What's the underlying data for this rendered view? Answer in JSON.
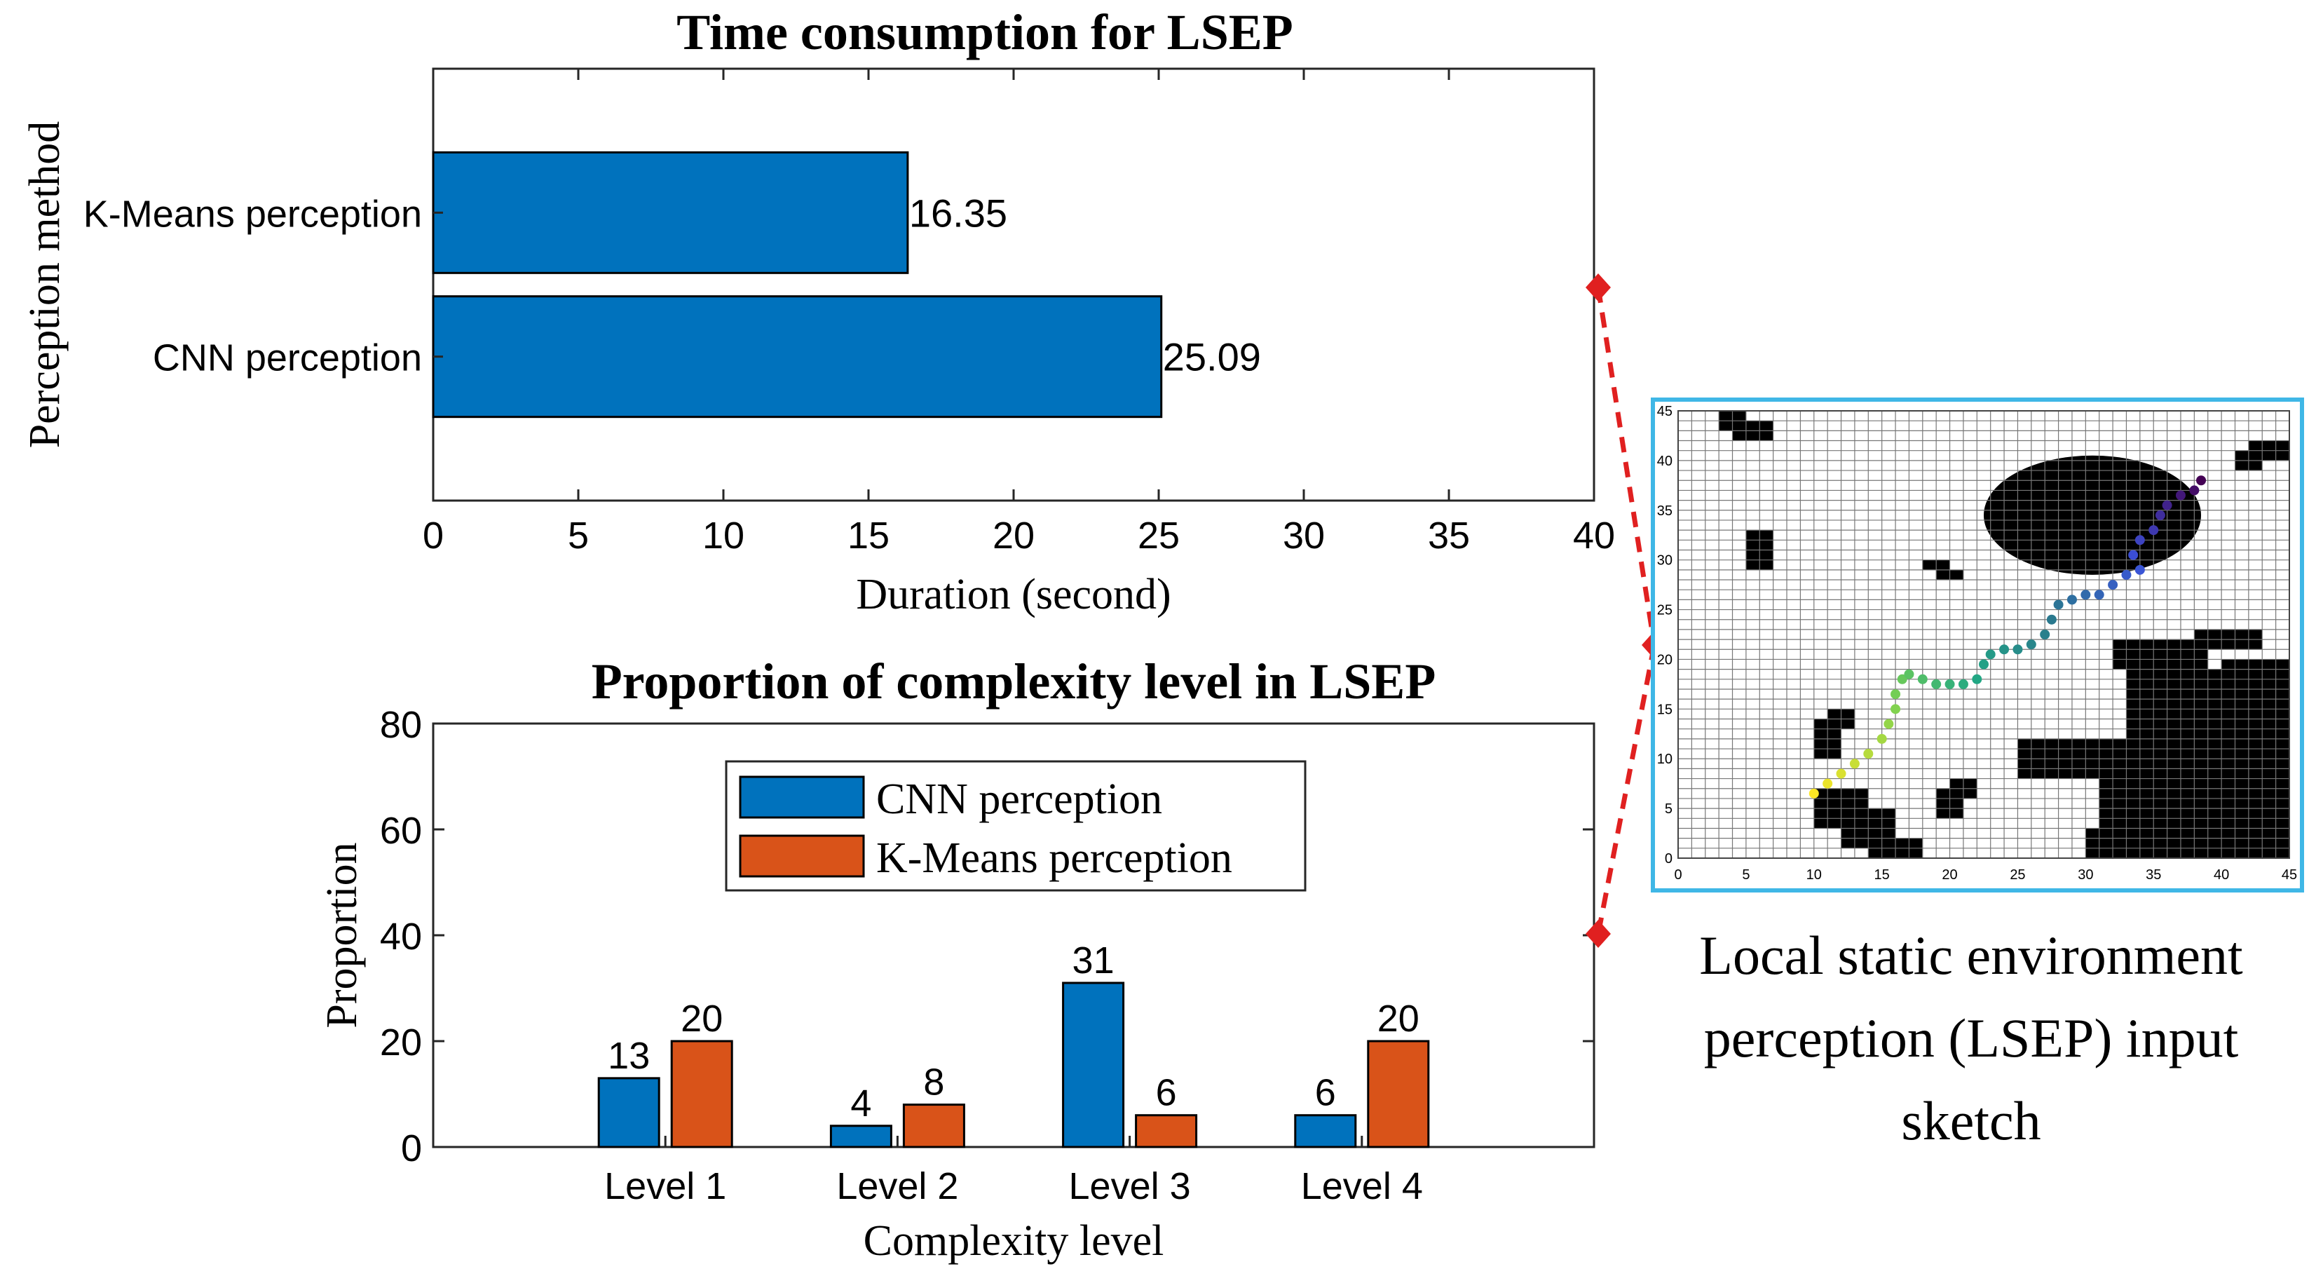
{
  "colors": {
    "cnn": "#0072BD",
    "kmeans": "#D95319",
    "connector": "#E02020",
    "frame": "#3FB7E6",
    "obstacle": "#000000"
  },
  "chart_data": [
    {
      "type": "bar",
      "orientation": "horizontal",
      "title": "Time consumption for LSEP",
      "xlabel": "Duration (second)",
      "ylabel": "Perception method",
      "categories": [
        "K-Means perception",
        "CNN perception"
      ],
      "values": [
        16.35,
        25.09
      ],
      "value_labels": [
        "16.35",
        "25.09"
      ],
      "xlim": [
        0,
        40
      ],
      "xticks": [
        "0",
        "5",
        "10",
        "15",
        "20",
        "25",
        "30",
        "35",
        "40"
      ],
      "grid": false
    },
    {
      "type": "bar",
      "orientation": "vertical",
      "title": "Proportion of complexity level in LSEP",
      "xlabel": "Complexity level",
      "ylabel": "Proportion",
      "categories": [
        "Level 1",
        "Level 2",
        "Level 3",
        "Level 4"
      ],
      "series": [
        {
          "name": "CNN perception",
          "values": [
            13,
            4,
            31,
            6
          ]
        },
        {
          "name": "K-Means perception",
          "values": [
            20,
            8,
            6,
            20
          ]
        }
      ],
      "ylim": [
        0,
        80
      ],
      "yticks": [
        "0",
        "20",
        "40",
        "60",
        "80"
      ],
      "legend": "top-center",
      "grid": false
    },
    {
      "type": "scatter",
      "title": "",
      "xlim": [
        0,
        45
      ],
      "ylim": [
        0,
        45
      ],
      "xticks": [
        "0",
        "5",
        "10",
        "15",
        "20",
        "25",
        "30",
        "35",
        "40",
        "45"
      ],
      "yticks": [
        "0",
        "5",
        "10",
        "15",
        "20",
        "25",
        "30",
        "35",
        "40",
        "45"
      ],
      "path_points": [
        [
          10,
          6.5
        ],
        [
          11,
          7.5
        ],
        [
          12,
          8.5
        ],
        [
          13,
          9.5
        ],
        [
          14,
          10.5
        ],
        [
          15,
          12
        ],
        [
          15.5,
          13.5
        ],
        [
          16,
          15
        ],
        [
          16,
          16.5
        ],
        [
          16.5,
          18
        ],
        [
          17,
          18.5
        ],
        [
          18,
          18
        ],
        [
          19,
          17.5
        ],
        [
          20,
          17.5
        ],
        [
          21,
          17.5
        ],
        [
          22,
          18
        ],
        [
          22.5,
          19.5
        ],
        [
          23,
          20.5
        ],
        [
          24,
          21
        ],
        [
          25,
          21
        ],
        [
          26,
          21.5
        ],
        [
          27,
          22.5
        ],
        [
          27.5,
          24
        ],
        [
          28,
          25.5
        ],
        [
          29,
          26
        ],
        [
          30,
          26.5
        ],
        [
          31,
          26.5
        ],
        [
          32,
          27.5
        ],
        [
          33,
          28.5
        ],
        [
          34,
          29
        ],
        [
          33.5,
          30.5
        ],
        [
          34,
          32
        ],
        [
          35,
          33
        ],
        [
          35.5,
          34.5
        ],
        [
          36,
          35.5
        ],
        [
          37,
          36.5
        ],
        [
          38,
          37
        ],
        [
          38.5,
          38
        ]
      ]
    }
  ],
  "caption": {
    "line1": "Local static environment",
    "line2": "perception (LSEP) input",
    "line3": "sketch"
  }
}
